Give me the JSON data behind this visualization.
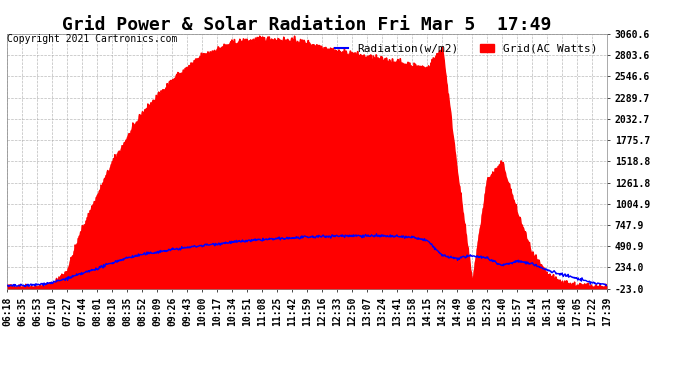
{
  "title": "Grid Power & Solar Radiation Fri Mar 5  17:49",
  "copyright_text": "Copyright 2021 Cartronics.com",
  "legend_radiation": "Radiation(w/m2)",
  "legend_grid": "Grid(AC Watts)",
  "yticks": [
    -23.0,
    234.0,
    490.9,
    747.9,
    1004.9,
    1261.8,
    1518.8,
    1775.7,
    2032.7,
    2289.7,
    2546.6,
    2803.6,
    3060.6
  ],
  "ymin": -23.0,
  "ymax": 3060.6,
  "background_color": "#ffffff",
  "grid_color": "#aaaaaa",
  "red_fill_color": "#ff0000",
  "blue_line_color": "#0000ff",
  "xtick_labels": [
    "06:18",
    "06:35",
    "06:53",
    "07:10",
    "07:27",
    "07:44",
    "08:01",
    "08:18",
    "08:35",
    "08:52",
    "09:09",
    "09:26",
    "09:43",
    "10:00",
    "10:17",
    "10:34",
    "10:51",
    "11:08",
    "11:25",
    "11:42",
    "11:59",
    "12:16",
    "12:33",
    "12:50",
    "13:07",
    "13:24",
    "13:41",
    "13:58",
    "14:15",
    "14:32",
    "14:49",
    "15:06",
    "15:23",
    "15:40",
    "15:57",
    "16:14",
    "16:31",
    "16:48",
    "17:05",
    "17:22",
    "17:39"
  ],
  "title_fontsize": 13,
  "axis_fontsize": 7,
  "copyright_fontsize": 7,
  "legend_fontsize": 8,
  "grid_keypoints_x": [
    0,
    2,
    3,
    4,
    5,
    7,
    9,
    11,
    13,
    15,
    17,
    19,
    20,
    21,
    22,
    23,
    24,
    25,
    26,
    27,
    28,
    29,
    30,
    31,
    32,
    33,
    34,
    35,
    36,
    37,
    38,
    39,
    40
  ],
  "grid_keypoints_y": [
    0,
    0,
    30,
    200,
    700,
    1500,
    2100,
    2500,
    2800,
    2950,
    3000,
    2980,
    2950,
    2900,
    2850,
    2820,
    2780,
    2750,
    2720,
    2680,
    2640,
    2900,
    1400,
    50,
    1300,
    1500,
    900,
    400,
    150,
    50,
    20,
    10,
    0
  ],
  "radiation_keypoints_x": [
    0,
    1,
    2,
    3,
    4,
    5,
    6,
    7,
    8,
    9,
    11,
    13,
    15,
    17,
    19,
    21,
    23,
    25,
    27,
    28,
    29,
    30,
    31,
    32,
    33,
    34,
    35,
    36,
    37,
    38,
    39,
    40
  ],
  "radiation_keypoints_y": [
    10,
    15,
    25,
    50,
    100,
    160,
    220,
    290,
    350,
    390,
    450,
    500,
    540,
    570,
    590,
    610,
    620,
    615,
    600,
    560,
    380,
    340,
    380,
    350,
    260,
    310,
    280,
    200,
    150,
    100,
    50,
    20
  ]
}
